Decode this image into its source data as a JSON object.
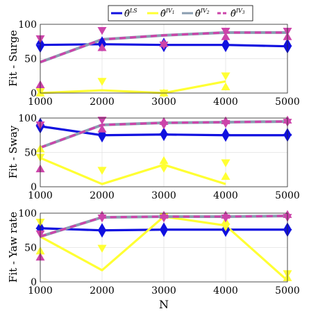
{
  "figure": {
    "xlabel": "N",
    "legend": [
      {
        "label_base": "θ̂",
        "label_sup": "LS",
        "color": "#1010e0",
        "dash": "solid"
      },
      {
        "label_base": "θ̂",
        "label_sup": "IV",
        "label_sub": "1",
        "color": "#ffff33",
        "dash": "solid"
      },
      {
        "label_base": "θ̂",
        "label_sup": "IV",
        "label_sub": "2",
        "color": "#8a9db0",
        "dash": "solid"
      },
      {
        "label_base": "θ̂",
        "label_sup": "IV",
        "label_sub": "3",
        "color": "#cc44aa",
        "dash": "dashed"
      }
    ]
  },
  "chart_data": [
    {
      "type": "line",
      "ylabel": "Fit - Surge",
      "x": [
        1000,
        2000,
        3000,
        4000,
        5000
      ],
      "xlim": [
        1000,
        5000
      ],
      "ylim": [
        0,
        100
      ],
      "yticks": [
        0,
        50,
        100
      ],
      "xticks": [
        1000,
        2000,
        3000,
        4000,
        5000
      ],
      "grid": true,
      "series": [
        {
          "values": [
            70,
            71,
            70,
            70,
            68
          ],
          "up": [
            75,
            76,
            74,
            74,
            73
          ],
          "down": [
            65,
            67,
            66,
            66,
            64
          ]
        },
        {
          "values": [
            0,
            4,
            0,
            17,
            null
          ],
          "up": [
            0,
            null,
            0,
            9,
            null
          ],
          "down": [
            2,
            17,
            0,
            25,
            null
          ]
        },
        {
          "values": [
            45,
            78,
            84,
            88,
            88
          ],
          "up": [
            null,
            null,
            null,
            null,
            null
          ],
          "down": [
            null,
            null,
            null,
            null,
            null
          ]
        },
        {
          "values": [
            45,
            78,
            84,
            88,
            88
          ],
          "up": [
            12,
            66,
            72,
            82,
            82
          ],
          "down": [
            79,
            91,
            70,
            90,
            90
          ]
        }
      ]
    },
    {
      "type": "line",
      "ylabel": "Fit - Sway",
      "x": [
        1000,
        2000,
        3000,
        4000,
        5000
      ],
      "xlim": [
        1000,
        5000
      ],
      "ylim": [
        0,
        100
      ],
      "yticks": [
        0,
        50,
        100
      ],
      "xticks": [
        1000,
        2000,
        3000,
        4000,
        5000
      ],
      "grid": true,
      "series": [
        {
          "values": [
            88,
            75,
            76,
            75,
            75
          ],
          "up": [
            94,
            80,
            80,
            79,
            79
          ],
          "down": [
            84,
            71,
            73,
            72,
            72
          ]
        },
        {
          "values": [
            42,
            4,
            32,
            4,
            null
          ],
          "up": [
            55,
            null,
            38,
            15,
            null
          ],
          "down": [
            43,
            24,
            27,
            35,
            null
          ]
        },
        {
          "values": [
            57,
            90,
            93,
            94,
            95
          ],
          "up": [
            null,
            null,
            null,
            null,
            null
          ],
          "down": [
            null,
            null,
            null,
            null,
            null
          ]
        },
        {
          "values": [
            57,
            90,
            93,
            94,
            95
          ],
          "up": [
            26,
            84,
            95,
            96,
            97
          ],
          "down": [
            90,
            97,
            90,
            92,
            94
          ]
        }
      ]
    },
    {
      "type": "line",
      "ylabel": "Fit - Yaw rate",
      "x": [
        1000,
        2000,
        3000,
        4000,
        5000
      ],
      "xlim": [
        1000,
        5000
      ],
      "ylim": [
        0,
        100
      ],
      "yticks": [
        0,
        50,
        100
      ],
      "xticks": [
        1000,
        2000,
        3000,
        4000,
        5000
      ],
      "grid": true,
      "series": [
        {
          "values": [
            78,
            75,
            76,
            76,
            76
          ],
          "up": [
            82,
            79,
            80,
            80,
            80
          ],
          "down": [
            74,
            71,
            72,
            72,
            72
          ]
        },
        {
          "values": [
            66,
            17,
            95,
            82,
            2
          ],
          "up": [
            45,
            null,
            null,
            88,
            6
          ],
          "down": [
            87,
            49,
            95,
            80,
            12
          ]
        },
        {
          "values": [
            66,
            94,
            95,
            95,
            96
          ],
          "up": [
            null,
            null,
            null,
            null,
            null
          ],
          "down": [
            null,
            null,
            null,
            null,
            null
          ]
        },
        {
          "values": [
            66,
            94,
            95,
            95,
            96
          ],
          "up": [
            36,
            97,
            97,
            97,
            98
          ],
          "down": [
            70,
            93,
            93,
            93,
            94
          ]
        }
      ]
    }
  ]
}
